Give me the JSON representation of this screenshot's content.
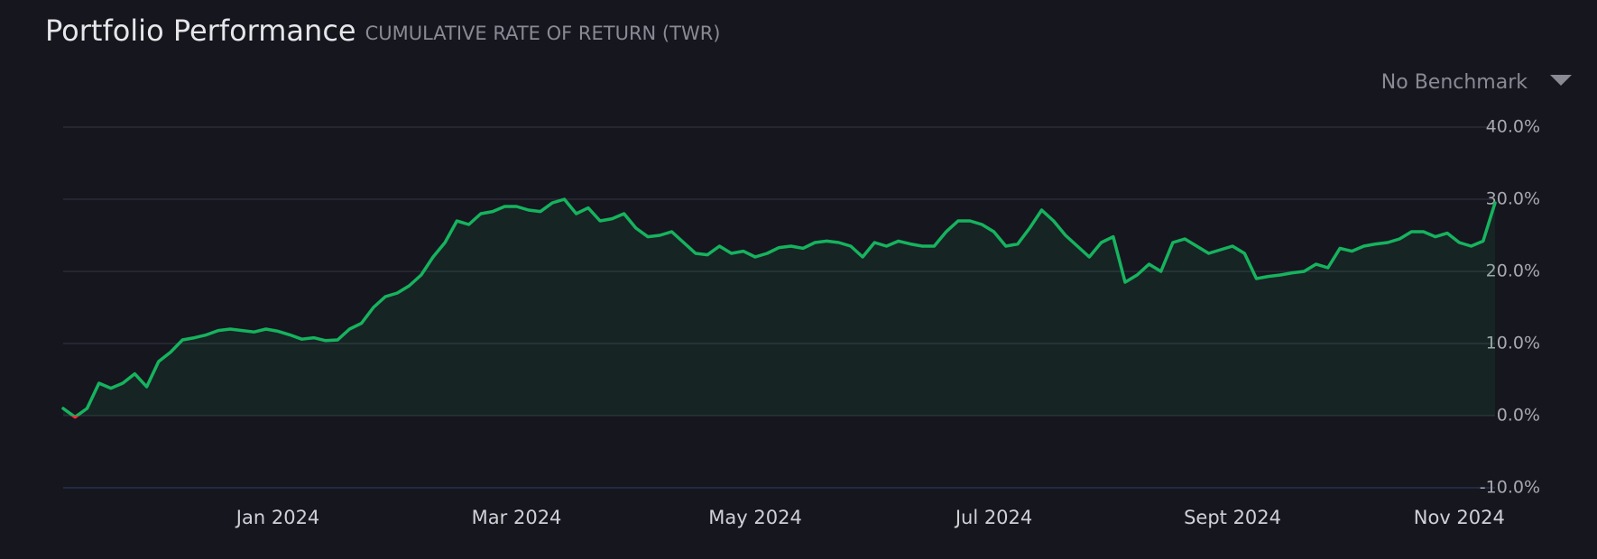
{
  "chart_data": {
    "type": "area-line",
    "title": "Portfolio Performance",
    "subtitle": "CUMULATIVE RATE OF RETURN (TWR)",
    "benchmark_selector": "No Benchmark",
    "categories": [
      null,
      null,
      null,
      null,
      null,
      null,
      null,
      null,
      null,
      null,
      null,
      null,
      null,
      null,
      null,
      null,
      null,
      null,
      "Jan 2024",
      null,
      null,
      null,
      null,
      null,
      null,
      null,
      null,
      null,
      null,
      null,
      null,
      null,
      null,
      null,
      null,
      null,
      null,
      null,
      "Mar 2024",
      null,
      null,
      null,
      null,
      null,
      null,
      null,
      null,
      null,
      null,
      null,
      null,
      null,
      null,
      null,
      null,
      null,
      null,
      null,
      "May 2024",
      null,
      null,
      null,
      null,
      null,
      null,
      null,
      null,
      null,
      null,
      null,
      null,
      null,
      null,
      null,
      null,
      null,
      null,
      null,
      "Jul 2024",
      null,
      null,
      null,
      null,
      null,
      null,
      null,
      null,
      null,
      null,
      null,
      null,
      null,
      null,
      null,
      null,
      null,
      null,
      null,
      "Sept 2024",
      null,
      null,
      null,
      null,
      null,
      null,
      null,
      null,
      null,
      null,
      null,
      null,
      null,
      null,
      null,
      null,
      null,
      null,
      "Nov 2024",
      null,
      null,
      null
    ],
    "values": [
      1.0,
      -0.2,
      1.0,
      4.5,
      3.8,
      4.5,
      5.8,
      4.0,
      7.5,
      8.8,
      10.5,
      10.8,
      11.2,
      11.8,
      12.0,
      11.8,
      11.6,
      12.0,
      11.7,
      11.2,
      10.6,
      10.8,
      10.4,
      10.5,
      12.0,
      12.8,
      15.0,
      16.5,
      17.0,
      18.0,
      19.5,
      22.0,
      24.0,
      27.0,
      26.5,
      28.0,
      28.3,
      29.0,
      29.0,
      28.5,
      28.3,
      29.5,
      30.0,
      28.0,
      28.8,
      27.0,
      27.3,
      28.0,
      26.0,
      24.8,
      25.0,
      25.5,
      24.0,
      22.5,
      22.3,
      23.5,
      22.5,
      22.8,
      22.0,
      22.5,
      23.3,
      23.5,
      23.2,
      24.0,
      24.2,
      24.0,
      23.5,
      22.0,
      24.0,
      23.5,
      24.2,
      23.8,
      23.5,
      23.5,
      25.5,
      27.0,
      27.0,
      26.5,
      25.5,
      23.5,
      23.8,
      26.0,
      28.5,
      27.0,
      25.0,
      23.5,
      22.0,
      24.0,
      24.8,
      18.5,
      19.5,
      21.0,
      20.0,
      24.0,
      24.5,
      23.5,
      22.5,
      23.0,
      23.5,
      22.5,
      19.0,
      19.3,
      19.5,
      19.8,
      20.0,
      21.0,
      20.5,
      23.2,
      22.8,
      23.5,
      23.8,
      24.0,
      24.5,
      25.5,
      25.5,
      24.8,
      25.3,
      24.0,
      23.5,
      24.2,
      29.5
    ],
    "color": "#16b35e",
    "negative_color": "#e0393e",
    "ylim": [
      -10,
      40
    ],
    "yticks": [
      {
        "value": -10,
        "label": "-10.0%"
      },
      {
        "value": 0,
        "label": "0.0%"
      },
      {
        "value": 10,
        "label": "10.0%"
      },
      {
        "value": 20,
        "label": "20.0%"
      },
      {
        "value": 30,
        "label": "30.0%"
      },
      {
        "value": 40,
        "label": "40.0%"
      }
    ],
    "grid": true
  }
}
